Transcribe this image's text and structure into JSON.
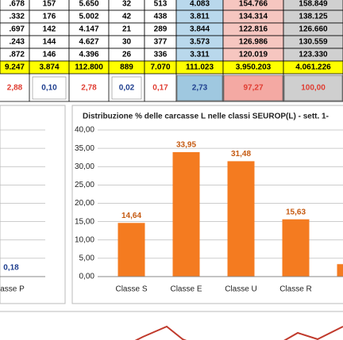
{
  "table": {
    "rows": [
      [
        ".678",
        "157",
        "5.650",
        "32",
        "513",
        "4.083",
        "154.766",
        "158.849"
      ],
      [
        ".332",
        "176",
        "5.002",
        "42",
        "438",
        "3.811",
        "134.314",
        "138.125"
      ],
      [
        ".697",
        "142",
        "4.147",
        "21",
        "289",
        "3.844",
        "122.816",
        "126.660"
      ],
      [
        ".243",
        "144",
        "4.627",
        "30",
        "377",
        "3.573",
        "126.986",
        "130.559"
      ],
      [
        ".872",
        "146",
        "4.396",
        "26",
        "336",
        "3.311",
        "120.019",
        "123.330"
      ]
    ],
    "total": [
      "9.247",
      "3.874",
      "112.800",
      "889",
      "7.070",
      "111.023",
      "3.950.203",
      "4.061.226"
    ],
    "percent": [
      "2,88",
      "0,10",
      "2,78",
      "0,02",
      "0,17",
      "2,73",
      "97,27",
      "100,00"
    ]
  },
  "chart_data": [
    {
      "type": "bar",
      "categories": [
        "lasse P"
      ],
      "values": [
        0.18
      ],
      "value_labels": [
        "0,18"
      ],
      "color": "#f47b20",
      "ylim": [
        0,
        40
      ],
      "grid": true
    },
    {
      "type": "bar",
      "title": "Distribuzione % delle carcasse L nelle classi SEUROP(L) - sett. 1-",
      "categories": [
        "Classe S",
        "Classe E",
        "Classe U",
        "Classe R",
        null
      ],
      "values": [
        14.64,
        33.95,
        31.48,
        15.63,
        3.4
      ],
      "value_labels": [
        "14,64",
        "33,95",
        "31,48",
        "15,63",
        null
      ],
      "color": "#f47b20",
      "ylim": [
        0,
        40
      ],
      "yticks": [
        {
          "value": 0,
          "label": "0,00"
        },
        {
          "value": 5,
          "label": "5,00"
        },
        {
          "value": 10,
          "label": "10,00"
        },
        {
          "value": 15,
          "label": "15,00"
        },
        {
          "value": 20,
          "label": "20,00"
        },
        {
          "value": 25,
          "label": "25,00"
        },
        {
          "value": 30,
          "label": "30,00"
        },
        {
          "value": 35,
          "label": "35,00"
        },
        {
          "value": 40,
          "label": "40,00"
        }
      ],
      "grid": true
    }
  ]
}
